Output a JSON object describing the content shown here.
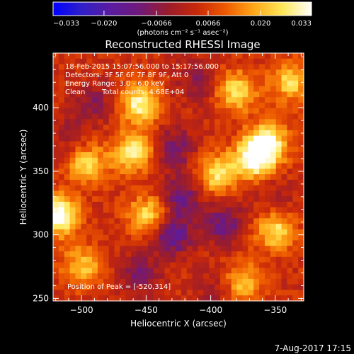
{
  "colorbar": {
    "ticks": [
      "-0.033",
      "-0.020",
      "-0.0066",
      "0.0066",
      "0.020",
      "0.033"
    ],
    "tick_values": [
      -0.033,
      -0.02,
      -0.0066,
      0.0066,
      0.02,
      0.033
    ],
    "range": [
      -0.033,
      0.033
    ],
    "unit_label": "(photons cm⁻² s⁻¹ asec⁻²)",
    "stops": [
      "#0000ff",
      "#3020c8",
      "#5a1ca0",
      "#701a7a",
      "#9a1c2c",
      "#c8280a",
      "#ee5a00",
      "#ffa818",
      "#ffe85a",
      "#ffffff"
    ]
  },
  "title": "Reconstructed RHESSI Image",
  "annotations": {
    "time_range": "18-Feb-2015 15:07:56.000 to 15:17:56.000",
    "detectors": "Detectors: 3F 5F 6F 7F 8F 9F, Att 0",
    "energy": "Energy Range: 3.0 - 6.0 keV",
    "algorithm": "Clean",
    "counts": "Total counts: 4.68E+04",
    "peak": "Position of Peak = [-520,314]"
  },
  "footer_date": "7-Aug-2017 17:15",
  "chart_data": {
    "type": "heatmap",
    "title": "Reconstructed RHESSI Image",
    "xlabel": "Heliocentric X (arcsec)",
    "ylabel": "Heliocentric Y (arcsec)",
    "xlim": [
      -522,
      -328
    ],
    "ylim": [
      248,
      443
    ],
    "x_ticks": [
      -500,
      -450,
      -400,
      -350
    ],
    "y_ticks": [
      250,
      300,
      350,
      400
    ],
    "x_tick_labels": [
      "−500",
      "−450",
      "−400",
      "−350"
    ],
    "y_tick_labels": [
      "250",
      "300",
      "350",
      "400"
    ],
    "value_range": [
      -0.033,
      0.033
    ],
    "peak_position": [
      -520,
      314
    ],
    "features": [
      {
        "x": -518,
        "y": 315,
        "value": 0.033
      },
      {
        "x": -455,
        "y": 403,
        "value": 0.026
      },
      {
        "x": -460,
        "y": 365,
        "value": 0.024
      },
      {
        "x": -448,
        "y": 315,
        "value": 0.022
      },
      {
        "x": -395,
        "y": 348,
        "value": 0.022
      },
      {
        "x": -380,
        "y": 413,
        "value": 0.022
      },
      {
        "x": -366,
        "y": 360,
        "value": 0.03
      },
      {
        "x": -356,
        "y": 373,
        "value": 0.026
      },
      {
        "x": -350,
        "y": 303,
        "value": 0.022
      },
      {
        "x": -376,
        "y": 263,
        "value": 0.018
      },
      {
        "x": -495,
        "y": 355,
        "value": 0.02
      },
      {
        "x": -500,
        "y": 275,
        "value": 0.018
      },
      {
        "x": -338,
        "y": 420,
        "value": 0.02
      },
      {
        "x": -490,
        "y": 405,
        "value": -0.01
      },
      {
        "x": -428,
        "y": 368,
        "value": -0.014
      },
      {
        "x": -430,
        "y": 300,
        "value": -0.02
      },
      {
        "x": -423,
        "y": 330,
        "value": -0.016
      },
      {
        "x": -455,
        "y": 270,
        "value": -0.012
      },
      {
        "x": -390,
        "y": 308,
        "value": -0.016
      },
      {
        "x": -410,
        "y": 420,
        "value": -0.01
      },
      {
        "x": -510,
        "y": 380,
        "value": -0.006
      },
      {
        "x": -350,
        "y": 330,
        "value": -0.006
      },
      {
        "x": -395,
        "y": 258,
        "value": -0.008
      }
    ]
  }
}
